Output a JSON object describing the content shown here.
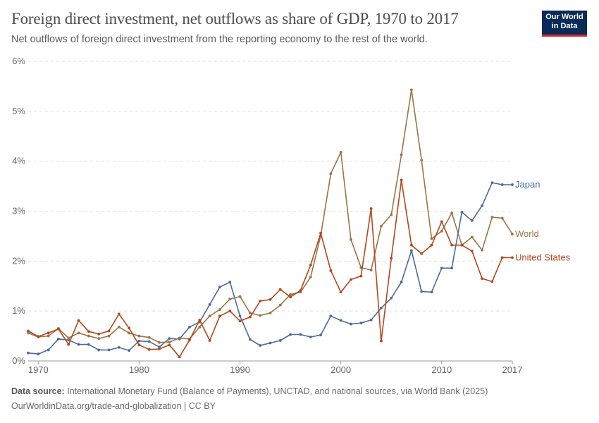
{
  "header": {
    "title": "Foreign direct investment, net outflows as share of GDP, 1970 to 2017",
    "subtitle": "Net outflows of foreign direct investment from the reporting economy to the rest of the world."
  },
  "logo": {
    "line1": "Our World",
    "line2": "in Data",
    "bg": "#0a2b57",
    "accent": "#cf2a2a"
  },
  "footer": {
    "source_label": "Data source:",
    "source_text": "International Monetary Fund (Balance of Payments), UNCTAD, and national sources, via World Bank (2025)",
    "url_line": "OurWorldinData.org/trade-and-globalization | CC BY"
  },
  "chart_data": {
    "type": "line",
    "title": "Foreign direct investment, net outflows as share of GDP, 1970 to 2017",
    "xlabel": "",
    "ylabel": "",
    "xlim": [
      1969,
      2017
    ],
    "ylim": [
      0,
      6
    ],
    "x_ticks": [
      {
        "value": 1970,
        "label": "1970"
      },
      {
        "value": 1980,
        "label": "1980"
      },
      {
        "value": 1990,
        "label": "1990"
      },
      {
        "value": 2000,
        "label": "2000"
      },
      {
        "value": 2010,
        "label": "2010"
      },
      {
        "value": 2017,
        "label": "2017"
      }
    ],
    "y_ticks": [
      {
        "value": 0,
        "label": "0%"
      },
      {
        "value": 1,
        "label": "1%"
      },
      {
        "value": 2,
        "label": "2%"
      },
      {
        "value": 3,
        "label": "3%"
      },
      {
        "value": 4,
        "label": "4%"
      },
      {
        "value": 5,
        "label": "5%"
      },
      {
        "value": 6,
        "label": "6%"
      }
    ],
    "grid": "horizontal-dashed",
    "legend": "labels-at-line-end-right",
    "x": [
      1969,
      1970,
      1971,
      1972,
      1973,
      1974,
      1975,
      1976,
      1977,
      1978,
      1979,
      1980,
      1981,
      1982,
      1983,
      1984,
      1985,
      1986,
      1987,
      1988,
      1989,
      1990,
      1991,
      1992,
      1993,
      1994,
      1995,
      1996,
      1997,
      1998,
      1999,
      2000,
      2001,
      2002,
      2003,
      2004,
      2005,
      2006,
      2007,
      2008,
      2009,
      2010,
      2011,
      2012,
      2013,
      2014,
      2015,
      2016,
      2017
    ],
    "series": [
      {
        "name": "Japan",
        "color": "#4c6a9c",
        "values": [
          0.16,
          0.14,
          0.22,
          0.44,
          0.42,
          0.33,
          0.33,
          0.22,
          0.22,
          0.27,
          0.21,
          0.4,
          0.39,
          0.28,
          0.45,
          0.44,
          0.68,
          0.78,
          1.13,
          1.48,
          1.58,
          0.9,
          0.43,
          0.31,
          0.36,
          0.41,
          0.53,
          0.53,
          0.48,
          0.52,
          0.9,
          0.81,
          0.74,
          0.76,
          0.82,
          1.06,
          1.26,
          1.58,
          2.21,
          1.39,
          1.38,
          1.86,
          1.86,
          2.98,
          2.81,
          3.11,
          3.57,
          3.53,
          3.53
        ]
      },
      {
        "name": "World",
        "color": "#9a7544",
        "values": [
          0.56,
          0.48,
          0.5,
          0.65,
          0.46,
          0.56,
          0.5,
          0.45,
          0.5,
          0.68,
          0.56,
          0.5,
          0.47,
          0.37,
          0.38,
          0.46,
          0.44,
          0.68,
          0.9,
          1.03,
          1.24,
          1.29,
          0.96,
          0.91,
          0.96,
          1.12,
          1.33,
          1.38,
          1.68,
          2.51,
          3.75,
          4.18,
          2.43,
          1.87,
          1.82,
          2.7,
          2.93,
          4.13,
          5.43,
          4.02,
          2.45,
          2.6,
          2.96,
          2.32,
          2.48,
          2.22,
          2.88,
          2.86,
          2.54
        ]
      },
      {
        "name": "United States",
        "color": "#b5461b",
        "values": [
          0.6,
          0.49,
          0.56,
          0.64,
          0.33,
          0.81,
          0.59,
          0.54,
          0.6,
          0.94,
          0.66,
          0.32,
          0.23,
          0.24,
          0.32,
          0.08,
          0.42,
          0.82,
          0.41,
          0.9,
          1.0,
          0.8,
          0.88,
          1.2,
          1.23,
          1.43,
          1.28,
          1.41,
          1.92,
          2.56,
          1.81,
          1.38,
          1.63,
          1.7,
          3.05,
          0.4,
          2.06,
          3.62,
          2.32,
          2.15,
          2.32,
          2.79,
          2.32,
          2.32,
          2.2,
          1.65,
          1.59,
          2.07,
          2.07
        ]
      }
    ]
  }
}
